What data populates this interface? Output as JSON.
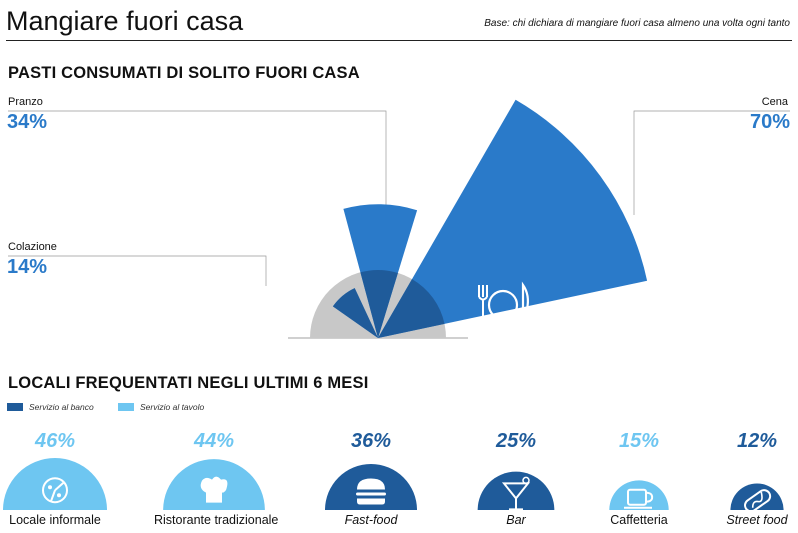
{
  "header": {
    "title": "Mangiare fuori casa",
    "base_note": "Base: chi dichiara di mangiare fuori casa almeno una volta ogni tanto"
  },
  "colors": {
    "meal_blue": "#2a7ac9",
    "banco": "#1f5b9a",
    "tavolo": "#6ec6f1",
    "gray": "#c8c8c8",
    "overlap": "#1f5b9a"
  },
  "section1_title": "PASTI CONSUMATI DI SOLITO FUORI CASA",
  "section2_title": "LOCALI FREQUENTATI NEGLI ULTIMI 6 MESI",
  "chart_data": [
    {
      "type": "radial-bar",
      "title": "PASTI CONSUMATI DI SOLITO FUORI CASA",
      "categories": [
        "Colazione",
        "Pranzo",
        "Cena"
      ],
      "values": [
        14,
        34,
        70
      ],
      "labels": [
        "14%",
        "34%",
        "70%"
      ],
      "icons": [
        "croissant-cup-icon",
        "burger-icon",
        "plate-cutlery-icon"
      ]
    },
    {
      "type": "bar",
      "title": "LOCALI FREQUENTATI NEGLI ULTIMI 6 MESI",
      "legend": [
        "Servizio al banco",
        "Servizio al tavolo"
      ],
      "categories": [
        "Locale informale",
        "Ristorante tradizionale",
        "Fast-food",
        "Bar",
        "Caffetteria",
        "Street food"
      ],
      "values": [
        46,
        44,
        36,
        25,
        15,
        12
      ],
      "labels": [
        "46%",
        "44%",
        "36%",
        "25%",
        "15%",
        "12%"
      ],
      "service": [
        "tavolo",
        "tavolo",
        "banco",
        "banco",
        "tavolo",
        "banco"
      ],
      "icons": [
        "pizza-icon",
        "chef-hat-icon",
        "burger-icon",
        "cocktail-icon",
        "coffee-cup-icon",
        "hotdog-icon"
      ]
    }
  ]
}
